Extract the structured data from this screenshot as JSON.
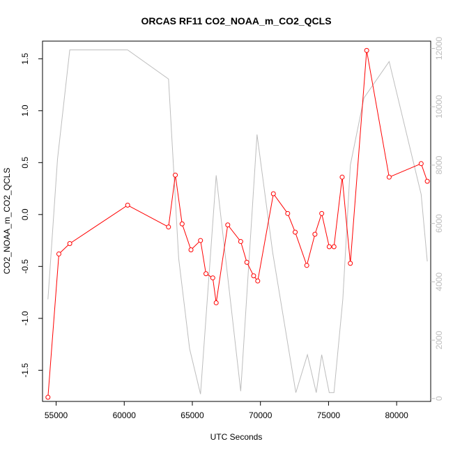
{
  "chart_data": {
    "type": "line",
    "title": "ORCAS RF11 CO2_NOAA_m_CO2_QCLS",
    "xlabel": "UTC Seconds",
    "ylabel": "CO2_NOAA_m_CO2_QCLS",
    "xlim": [
      54000,
      82500
    ],
    "ylim": [
      -1.8,
      1.67
    ],
    "y2lim": [
      -100,
      12250
    ],
    "x_ticks": [
      55000,
      60000,
      65000,
      70000,
      75000,
      80000
    ],
    "x_tick_labels": [
      "55000",
      "60000",
      "65000",
      "70000",
      "75000",
      "80000"
    ],
    "y_ticks": [
      -1.5,
      -1.0,
      -0.5,
      0.0,
      0.5,
      1.0,
      1.5
    ],
    "y_tick_labels": [
      "-1.5",
      "-1.0",
      "-0.5",
      "0.0",
      "0.5",
      "1.0",
      "1.5"
    ],
    "y2_ticks": [
      0,
      2000,
      4000,
      6000,
      8000,
      10000,
      12000
    ],
    "y2_tick_labels": [
      "0",
      "2000",
      "4000",
      "6000",
      "8000",
      "10000",
      "12000"
    ],
    "grid": false,
    "series": [
      {
        "axis": "left",
        "color": "#ff0000",
        "style": "line+circles",
        "x": [
          54400,
          55200,
          56000,
          60250,
          63250,
          63750,
          64250,
          64900,
          65600,
          66000,
          66500,
          66750,
          67600,
          68550,
          69000,
          69500,
          69800,
          70950,
          72000,
          72550,
          73400,
          74000,
          74500,
          75050,
          75400,
          76000,
          76600,
          77800,
          79450,
          81800,
          82250
        ],
        "y": [
          -1.76,
          -0.38,
          -0.28,
          0.09,
          -0.12,
          0.38,
          -0.09,
          -0.34,
          -0.25,
          -0.57,
          -0.61,
          -0.85,
          -0.1,
          -0.26,
          -0.46,
          -0.59,
          -0.64,
          0.2,
          0.01,
          -0.17,
          -0.49,
          -0.19,
          0.01,
          -0.31,
          -0.31,
          0.36,
          -0.47,
          1.58,
          0.36,
          0.49,
          0.32
        ]
      },
      {
        "axis": "right",
        "color": "#bdbdbd",
        "style": "line",
        "x": [
          54400,
          55100,
          56000,
          60250,
          63250,
          64000,
          64800,
          65600,
          66750,
          68550,
          69750,
          70900,
          72600,
          73450,
          74100,
          74500,
          75050,
          75400,
          76050,
          76600,
          77600,
          79450,
          81800,
          82250
        ],
        "y": [
          3400,
          8200,
          11950,
          11950,
          10950,
          4800,
          1700,
          150,
          7650,
          250,
          9050,
          5000,
          200,
          1500,
          200,
          1500,
          200,
          200,
          3400,
          8000,
          10300,
          11550,
          7000,
          4700
        ]
      }
    ]
  }
}
